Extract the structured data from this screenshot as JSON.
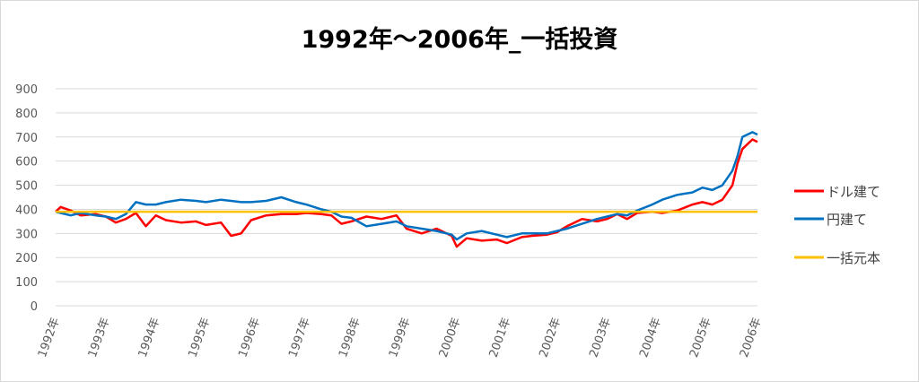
{
  "chart_data": {
    "type": "line",
    "title": "1992年～2006年_一括投資",
    "xlabel": "",
    "ylabel": "",
    "ylim": [
      0,
      900
    ],
    "yticks": [
      0,
      100,
      200,
      300,
      400,
      500,
      600,
      700,
      800,
      900
    ],
    "categories": [
      "1992年",
      "1993年",
      "1994年",
      "1995年",
      "1996年",
      "1997年",
      "1998年",
      "1999年",
      "2000年",
      "2001年",
      "2002年",
      "2003年",
      "2004年",
      "2005年",
      "2006年"
    ],
    "grid": true,
    "legend_position": "right",
    "series": [
      {
        "name": "ドル建て",
        "color": "#ff0000",
        "x": [
          1992.0,
          1992.1,
          1992.3,
          1992.5,
          1992.8,
          1993.0,
          1993.2,
          1993.4,
          1993.6,
          1993.8,
          1994.0,
          1994.2,
          1994.5,
          1994.8,
          1995.0,
          1995.3,
          1995.5,
          1995.7,
          1995.9,
          1996.2,
          1996.5,
          1996.8,
          1997.0,
          1997.3,
          1997.5,
          1997.7,
          1997.9,
          1998.2,
          1998.5,
          1998.8,
          1999.0,
          1999.3,
          1999.6,
          1999.9,
          2000.0,
          2000.2,
          2000.5,
          2000.8,
          2001.0,
          2001.3,
          2001.5,
          2001.8,
          2002.0,
          2002.2,
          2002.5,
          2002.8,
          2003.0,
          2003.2,
          2003.4,
          2003.6,
          2003.9,
          2004.1,
          2004.4,
          2004.7,
          2004.9,
          2005.1,
          2005.3,
          2005.5,
          2005.6,
          2005.7,
          2005.9,
          2006.0
        ],
        "values": [
          390,
          410,
          395,
          375,
          380,
          370,
          345,
          360,
          385,
          330,
          375,
          355,
          345,
          350,
          335,
          345,
          290,
          300,
          355,
          375,
          380,
          380,
          385,
          380,
          375,
          340,
          350,
          370,
          360,
          375,
          320,
          300,
          320,
          290,
          245,
          280,
          270,
          275,
          260,
          285,
          290,
          295,
          305,
          330,
          360,
          350,
          360,
          380,
          360,
          385,
          390,
          385,
          395,
          420,
          430,
          420,
          440,
          500,
          590,
          650,
          690,
          680
        ]
      },
      {
        "name": "円建て",
        "color": "#0070c0",
        "x": [
          1992.0,
          1992.1,
          1992.3,
          1992.5,
          1992.8,
          1993.0,
          1993.2,
          1993.4,
          1993.6,
          1993.8,
          1994.0,
          1994.2,
          1994.5,
          1994.8,
          1995.0,
          1995.3,
          1995.5,
          1995.7,
          1995.9,
          1996.2,
          1996.5,
          1996.8,
          1997.0,
          1997.3,
          1997.5,
          1997.7,
          1997.9,
          1998.2,
          1998.5,
          1998.8,
          1999.0,
          1999.3,
          1999.6,
          1999.9,
          2000.0,
          2000.2,
          2000.5,
          2000.8,
          2001.0,
          2001.3,
          2001.5,
          2001.8,
          2002.0,
          2002.2,
          2002.5,
          2002.8,
          2003.0,
          2003.2,
          2003.4,
          2003.6,
          2003.9,
          2004.1,
          2004.4,
          2004.7,
          2004.9,
          2005.1,
          2005.3,
          2005.5,
          2005.6,
          2005.7,
          2005.9,
          2006.0
        ],
        "values": [
          390,
          385,
          375,
          385,
          375,
          370,
          360,
          380,
          430,
          420,
          420,
          430,
          440,
          435,
          430,
          440,
          435,
          430,
          430,
          435,
          450,
          430,
          420,
          400,
          390,
          370,
          365,
          330,
          340,
          350,
          330,
          320,
          310,
          295,
          275,
          300,
          310,
          295,
          285,
          300,
          300,
          300,
          310,
          320,
          340,
          360,
          370,
          380,
          375,
          395,
          420,
          440,
          460,
          470,
          490,
          480,
          500,
          560,
          620,
          700,
          720,
          710
        ]
      },
      {
        "name": "一括元本",
        "color": "#ffc000",
        "x": [
          1992.0,
          2006.0
        ],
        "values": [
          390,
          390
        ]
      }
    ]
  }
}
